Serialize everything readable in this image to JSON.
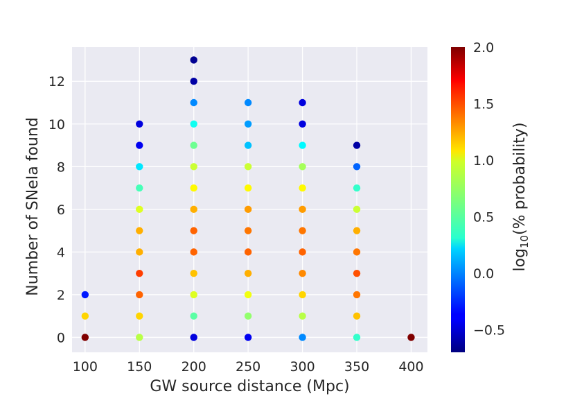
{
  "chart_data": {
    "type": "scatter",
    "xlabel": "GW source distance (Mpc)",
    "ylabel": "Number of SNeIa found",
    "colorbar_label_prefix": "log",
    "colorbar_label_sub": "10",
    "colorbar_label_suffix": "(% probability)",
    "x_ticks": [
      100,
      150,
      200,
      250,
      300,
      350,
      400
    ],
    "y_ticks": [
      0,
      2,
      4,
      6,
      8,
      10,
      12
    ],
    "xlim": [
      88,
      415
    ],
    "ylim": [
      -0.7,
      13.6
    ],
    "color_scale": {
      "min": -0.7,
      "max": 2.0,
      "colormap": "jet",
      "ticks": [
        -0.5,
        0.0,
        0.5,
        1.0,
        1.5,
        2.0
      ],
      "tick_labels": [
        "−0.5",
        "0.0",
        "0.5",
        "1.0",
        "1.5",
        "2.0"
      ]
    },
    "grid": true,
    "background": "#eaeaf2",
    "points": [
      {
        "x": 100,
        "y": 0,
        "c": 2.0
      },
      {
        "x": 100,
        "y": 1,
        "c": 1.1
      },
      {
        "x": 100,
        "y": 2,
        "c": -0.3
      },
      {
        "x": 150,
        "y": 0,
        "c": 0.8
      },
      {
        "x": 150,
        "y": 1,
        "c": 1.1
      },
      {
        "x": 150,
        "y": 2,
        "c": 1.4
      },
      {
        "x": 150,
        "y": 3,
        "c": 1.5
      },
      {
        "x": 150,
        "y": 4,
        "c": 1.2
      },
      {
        "x": 150,
        "y": 5,
        "c": 1.2
      },
      {
        "x": 150,
        "y": 6,
        "c": 0.9
      },
      {
        "x": 150,
        "y": 7,
        "c": 0.5
      },
      {
        "x": 150,
        "y": 8,
        "c": 0.25
      },
      {
        "x": 150,
        "y": 9,
        "c": -0.4
      },
      {
        "x": 150,
        "y": 10,
        "c": -0.45
      },
      {
        "x": 200,
        "y": 0,
        "c": -0.45
      },
      {
        "x": 200,
        "y": 1,
        "c": 0.55
      },
      {
        "x": 200,
        "y": 2,
        "c": 0.9
      },
      {
        "x": 200,
        "y": 3,
        "c": 1.15
      },
      {
        "x": 200,
        "y": 4,
        "c": 1.4
      },
      {
        "x": 200,
        "y": 5,
        "c": 1.4
      },
      {
        "x": 200,
        "y": 6,
        "c": 1.2
      },
      {
        "x": 200,
        "y": 7,
        "c": 1.0
      },
      {
        "x": 200,
        "y": 8,
        "c": 0.85
      },
      {
        "x": 200,
        "y": 9,
        "c": 0.6
      },
      {
        "x": 200,
        "y": 10,
        "c": 0.35
      },
      {
        "x": 200,
        "y": 11,
        "c": 0.0
      },
      {
        "x": 200,
        "y": 12,
        "c": -0.6
      },
      {
        "x": 200,
        "y": 13,
        "c": -0.65
      },
      {
        "x": 250,
        "y": 0,
        "c": -0.4
      },
      {
        "x": 250,
        "y": 1,
        "c": 0.7
      },
      {
        "x": 250,
        "y": 2,
        "c": 0.95
      },
      {
        "x": 250,
        "y": 3,
        "c": 1.2
      },
      {
        "x": 250,
        "y": 4,
        "c": 1.4
      },
      {
        "x": 250,
        "y": 5,
        "c": 1.35
      },
      {
        "x": 250,
        "y": 6,
        "c": 1.25
      },
      {
        "x": 250,
        "y": 7,
        "c": 1.0
      },
      {
        "x": 250,
        "y": 8,
        "c": 0.85
      },
      {
        "x": 250,
        "y": 9,
        "c": 0.15
      },
      {
        "x": 250,
        "y": 10,
        "c": 0.05
      },
      {
        "x": 250,
        "y": 11,
        "c": 0.0
      },
      {
        "x": 300,
        "y": 0,
        "c": 0.0
      },
      {
        "x": 300,
        "y": 1,
        "c": 0.8
      },
      {
        "x": 300,
        "y": 2,
        "c": 1.1
      },
      {
        "x": 300,
        "y": 3,
        "c": 1.3
      },
      {
        "x": 300,
        "y": 4,
        "c": 1.4
      },
      {
        "x": 300,
        "y": 5,
        "c": 1.35
      },
      {
        "x": 300,
        "y": 6,
        "c": 1.25
      },
      {
        "x": 300,
        "y": 7,
        "c": 1.0
      },
      {
        "x": 300,
        "y": 8,
        "c": 0.75
      },
      {
        "x": 300,
        "y": 9,
        "c": 0.3
      },
      {
        "x": 300,
        "y": 10,
        "c": -0.45
      },
      {
        "x": 300,
        "y": 11,
        "c": -0.45
      },
      {
        "x": 350,
        "y": 0,
        "c": 0.45
      },
      {
        "x": 350,
        "y": 1,
        "c": 1.15
      },
      {
        "x": 350,
        "y": 2,
        "c": 1.35
      },
      {
        "x": 350,
        "y": 3,
        "c": 1.45
      },
      {
        "x": 350,
        "y": 4,
        "c": 1.35
      },
      {
        "x": 350,
        "y": 5,
        "c": 1.2
      },
      {
        "x": 350,
        "y": 6,
        "c": 0.85
      },
      {
        "x": 350,
        "y": 7,
        "c": 0.45
      },
      {
        "x": 350,
        "y": 8,
        "c": -0.1
      },
      {
        "x": 350,
        "y": 9,
        "c": -0.6
      },
      {
        "x": 400,
        "y": 0,
        "c": 2.0
      }
    ]
  }
}
